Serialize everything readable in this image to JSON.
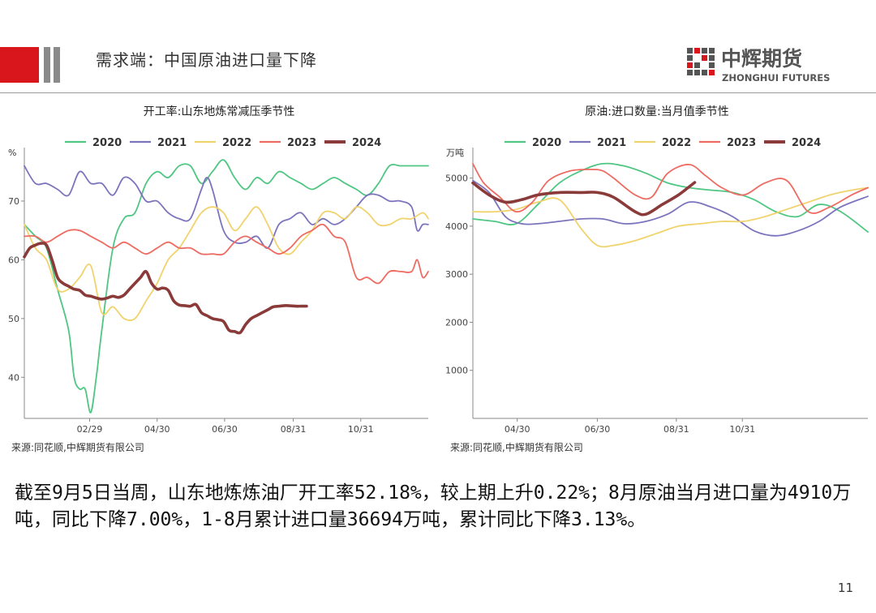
{
  "header": {
    "title": "需求端：中国原油进口量下降",
    "logo_cn": "中辉期货",
    "logo_en": "ZHONGHUI FUTURES",
    "accent_red": "#d9161c",
    "accent_gray": "#8a8a8a"
  },
  "chart_data": [
    {
      "type": "line",
      "title": "开工率:山东地炼常减压季节性",
      "ylabel": "%",
      "ylim": [
        33,
        78
      ],
      "yticks": [
        40,
        50,
        60,
        70
      ],
      "xlim": [
        0,
        365
      ],
      "xticks": [
        {
          "day": 59,
          "label": "02/29"
        },
        {
          "day": 120,
          "label": "04/30"
        },
        {
          "day": 181,
          "label": "06/30"
        },
        {
          "day": 243,
          "label": "08/31"
        },
        {
          "day": 304,
          "label": "10/31"
        }
      ],
      "grid": false,
      "legend_position": "top",
      "series": [
        {
          "name": "2020",
          "color": "#4fc682",
          "x": [
            0,
            10,
            20,
            30,
            40,
            45,
            50,
            55,
            60,
            65,
            70,
            80,
            90,
            100,
            110,
            120,
            130,
            140,
            150,
            160,
            170,
            180,
            190,
            200,
            210,
            220,
            230,
            240,
            250,
            260,
            270,
            280,
            290,
            300,
            310,
            320,
            330,
            340,
            350,
            360,
            365
          ],
          "y": [
            66,
            64,
            62,
            55,
            48,
            40,
            38,
            38,
            34,
            40,
            48,
            62,
            67,
            68,
            73,
            75,
            74,
            76,
            76,
            73,
            75,
            77,
            74,
            72,
            74,
            73,
            75,
            74,
            73,
            72,
            73,
            74,
            73,
            72,
            71,
            73,
            76,
            76,
            76,
            76,
            76
          ]
        },
        {
          "name": "2021",
          "color": "#7b74bd",
          "x": [
            0,
            10,
            20,
            30,
            40,
            50,
            60,
            70,
            80,
            90,
            100,
            110,
            120,
            130,
            140,
            150,
            160,
            165,
            170,
            180,
            190,
            200,
            210,
            220,
            230,
            240,
            250,
            260,
            270,
            280,
            290,
            300,
            310,
            320,
            330,
            340,
            350,
            355,
            360,
            365
          ],
          "y": [
            76,
            73,
            73,
            72,
            71,
            75,
            73,
            73,
            71,
            74,
            73,
            70,
            70,
            68,
            67,
            67,
            72,
            74,
            72,
            65,
            63,
            63,
            64,
            62,
            66,
            67,
            68,
            66,
            67,
            66,
            67,
            69,
            71,
            71,
            70,
            70,
            69,
            65,
            66,
            66
          ]
        },
        {
          "name": "2022",
          "color": "#f0d36c",
          "x": [
            0,
            10,
            20,
            30,
            40,
            50,
            60,
            70,
            80,
            90,
            100,
            110,
            120,
            130,
            140,
            150,
            160,
            170,
            180,
            190,
            200,
            210,
            220,
            230,
            240,
            250,
            260,
            270,
            280,
            290,
            300,
            310,
            320,
            330,
            340,
            350,
            360,
            365
          ],
          "y": [
            66,
            62,
            60,
            55,
            55,
            57,
            59,
            51,
            52,
            50,
            50,
            53,
            56,
            60,
            62,
            65,
            68,
            69,
            68,
            65,
            67,
            69,
            66,
            62,
            61,
            63,
            65,
            68,
            68,
            67,
            69,
            68,
            66,
            66,
            67,
            67,
            68,
            67
          ]
        },
        {
          "name": "2023",
          "color": "#ee6b62",
          "x": [
            0,
            10,
            20,
            30,
            40,
            50,
            60,
            70,
            80,
            90,
            100,
            110,
            120,
            130,
            140,
            150,
            160,
            170,
            180,
            190,
            200,
            210,
            220,
            230,
            240,
            250,
            260,
            270,
            280,
            290,
            300,
            310,
            320,
            330,
            340,
            350,
            355,
            360,
            365
          ],
          "y": [
            64,
            64,
            63,
            64,
            65,
            65,
            64,
            63,
            62,
            63,
            62,
            61,
            62,
            63,
            62,
            62,
            61,
            61,
            61,
            63,
            64,
            63,
            62,
            61,
            62,
            64,
            65,
            66,
            64,
            63,
            57,
            57,
            56,
            58,
            58,
            58,
            60,
            57,
            58
          ]
        },
        {
          "name": "2024",
          "color": "#8b3a3a",
          "x": [
            0,
            5,
            10,
            15,
            20,
            25,
            30,
            35,
            40,
            45,
            50,
            55,
            60,
            65,
            70,
            75,
            80,
            85,
            90,
            95,
            100,
            105,
            110,
            115,
            120,
            125,
            130,
            135,
            140,
            145,
            150,
            155,
            160,
            165,
            170,
            175,
            180,
            185,
            190,
            195,
            200,
            205,
            210,
            215,
            220,
            225,
            230,
            235,
            240,
            245,
            250,
            255
          ],
          "y": [
            60.5,
            62,
            62.5,
            62.8,
            62.5,
            60,
            57,
            56,
            55.5,
            55,
            54.8,
            54,
            53.8,
            53.5,
            53.3,
            53.5,
            53.8,
            53.6,
            54,
            55,
            56,
            57,
            58,
            56,
            55,
            55.2,
            54.8,
            53,
            52.3,
            52.2,
            52.1,
            52.4,
            51,
            50.5,
            50,
            49.8,
            49.5,
            48,
            47.8,
            47.6,
            49,
            50,
            50.5,
            51,
            51.5,
            52,
            52.1,
            52.2,
            52.18,
            52.1,
            52.1,
            52.1
          ]
        }
      ],
      "source": "来源:同花顺,中辉期货有限公司"
    },
    {
      "type": "line",
      "title": "原油:进口数量:当月值季节性",
      "ylabel": "万吨",
      "ylim": [
        0,
        5500
      ],
      "yticks": [
        1000,
        2000,
        3000,
        4000,
        5000
      ],
      "xlim": [
        0,
        365
      ],
      "xticks": [
        {
          "day": 41,
          "label": "04/30"
        },
        {
          "day": 115,
          "label": "06/30"
        },
        {
          "day": 188,
          "label": "08/31"
        },
        {
          "day": 249,
          "label": "10/31"
        }
      ],
      "grid": false,
      "legend_position": "top",
      "series": [
        {
          "name": "2020",
          "color": "#4fc682",
          "x": [
            0,
            20,
            40,
            60,
            80,
            100,
            120,
            140,
            160,
            180,
            200,
            220,
            240,
            260,
            280,
            300,
            320,
            340,
            365
          ],
          "y": [
            4150,
            4100,
            4050,
            4450,
            4900,
            5150,
            5300,
            5250,
            5100,
            4900,
            4800,
            4750,
            4700,
            4550,
            4300,
            4200,
            4450,
            4300,
            3880
          ]
        },
        {
          "name": "2021",
          "color": "#7b74bd",
          "x": [
            0,
            15,
            30,
            45,
            60,
            80,
            100,
            120,
            140,
            160,
            180,
            200,
            220,
            240,
            260,
            280,
            300,
            320,
            340,
            365
          ],
          "y": [
            4950,
            4700,
            4200,
            4050,
            4050,
            4100,
            4150,
            4150,
            4050,
            4100,
            4250,
            4500,
            4400,
            4200,
            3900,
            3800,
            3900,
            4100,
            4400,
            4620
          ]
        },
        {
          "name": "2022",
          "color": "#f0d36c",
          "x": [
            0,
            20,
            40,
            60,
            80,
            100,
            115,
            130,
            150,
            170,
            190,
            210,
            230,
            250,
            270,
            290,
            310,
            330,
            350,
            365
          ],
          "y": [
            4300,
            4300,
            4350,
            4500,
            4550,
            3950,
            3600,
            3600,
            3700,
            3850,
            4000,
            4050,
            4100,
            4100,
            4200,
            4350,
            4500,
            4650,
            4750,
            4800
          ]
        },
        {
          "name": "2023",
          "color": "#ee6b62",
          "x": [
            0,
            10,
            25,
            40,
            55,
            70,
            90,
            110,
            120,
            130,
            150,
            165,
            180,
            200,
            215,
            230,
            250,
            270,
            290,
            310,
            330,
            350,
            365
          ],
          "y": [
            5300,
            4900,
            4600,
            4300,
            4500,
            4950,
            5150,
            5180,
            5150,
            5000,
            4650,
            4600,
            5100,
            5280,
            5050,
            4800,
            4650,
            4900,
            4950,
            4300,
            4400,
            4650,
            4800
          ]
        },
        {
          "name": "2024",
          "color": "#8b3a3a",
          "x": [
            0,
            15,
            30,
            45,
            60,
            80,
            100,
            115,
            130,
            150,
            160,
            175,
            190,
            205
          ],
          "y": [
            4900,
            4650,
            4500,
            4550,
            4650,
            4700,
            4700,
            4700,
            4600,
            4300,
            4250,
            4450,
            4650,
            4910
          ]
        }
      ],
      "source": "来源:同花顺,中辉期货有限公司"
    }
  ],
  "summary": "截至9月5日当周，山东地炼炼油厂开工率52.18%，较上期上升0.22%；8月原油当月进口量为4910万吨，同比下降7.00%，1-8月累计进口量36694万吨，累计同比下降3.13%。",
  "page_number": "11"
}
